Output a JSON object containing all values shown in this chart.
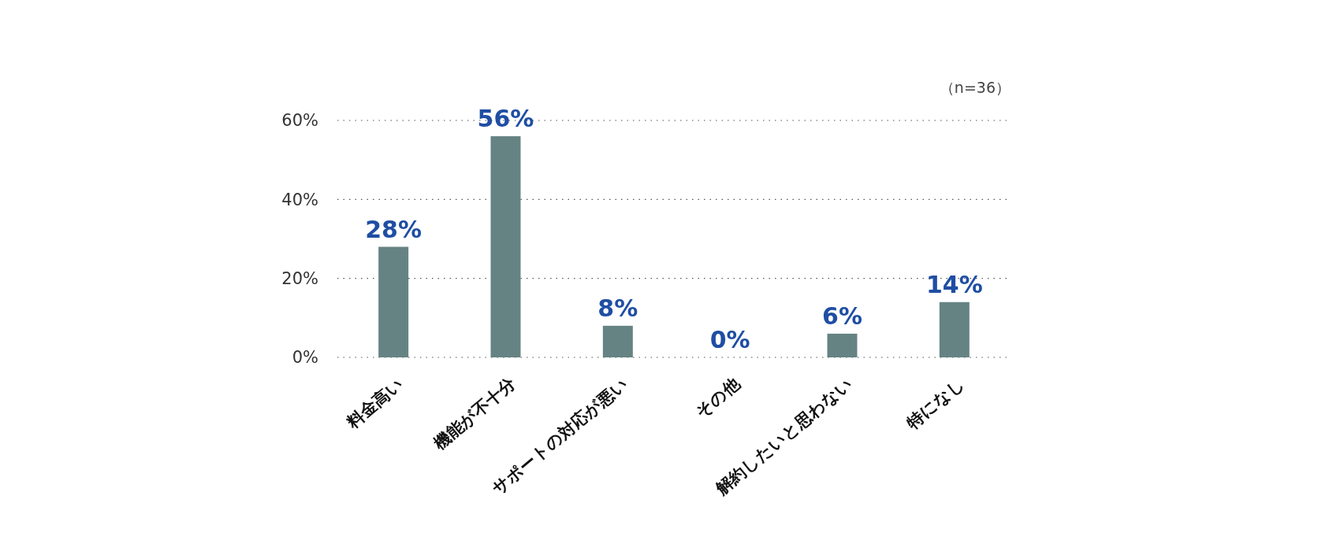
{
  "chart_data": {
    "type": "bar",
    "categories": [
      "料金高い",
      "機能が不十分",
      "サポートの対応が悪い",
      "その他",
      "解約したいと思わない",
      "特になし"
    ],
    "values": [
      28,
      56,
      8,
      0,
      6,
      14
    ],
    "value_labels": [
      "28%",
      "56%",
      "8%",
      "0%",
      "6%",
      "14%"
    ],
    "color": "#668383",
    "ylim": [
      0,
      60
    ],
    "yticks": [
      {
        "value": 0,
        "label": "0%"
      },
      {
        "value": 20,
        "label": "20%"
      },
      {
        "value": 40,
        "label": "40%"
      },
      {
        "value": 60,
        "label": "60%"
      }
    ],
    "grid": "y",
    "annotations": [
      "（n=36）"
    ]
  }
}
